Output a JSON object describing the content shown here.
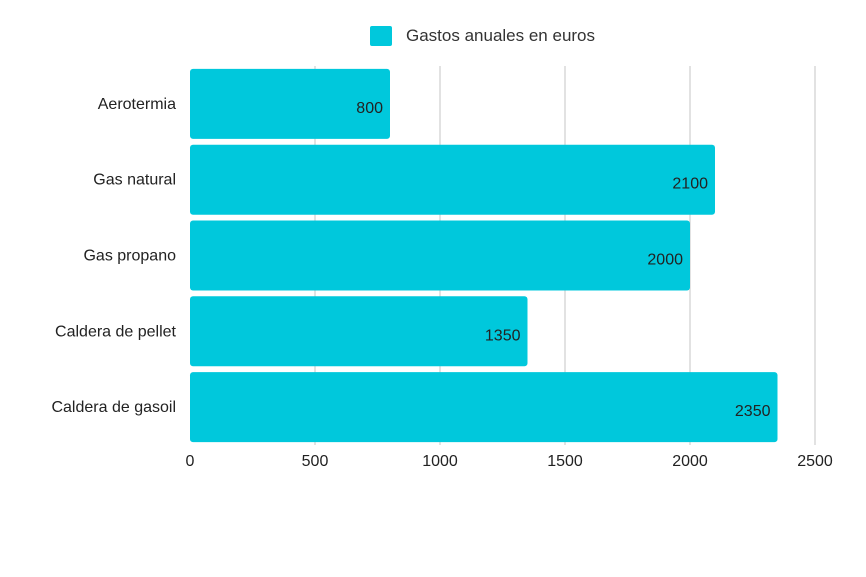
{
  "chart_data": {
    "type": "bar",
    "orientation": "horizontal",
    "categories": [
      "Aerotermia",
      "Gas natural",
      "Gas propano",
      "Caldera de pellet",
      "Caldera de gasoil"
    ],
    "series": [
      {
        "name": "Gastos anuales en euros",
        "values": [
          800,
          2100,
          2000,
          1350,
          2350
        ],
        "color": "#00c8dc"
      }
    ],
    "xlim": [
      0,
      2500
    ],
    "xticks": [
      "0",
      "500",
      "1000",
      "1500",
      "2000",
      "2500"
    ],
    "grid": "vertical",
    "legend_position": "top",
    "data_labels": [
      "800",
      "2100",
      "2000",
      "1350",
      "2350"
    ]
  },
  "colors": {
    "bar": "#00c8dc",
    "grid": "#d9d9d9",
    "text": "#222222"
  }
}
